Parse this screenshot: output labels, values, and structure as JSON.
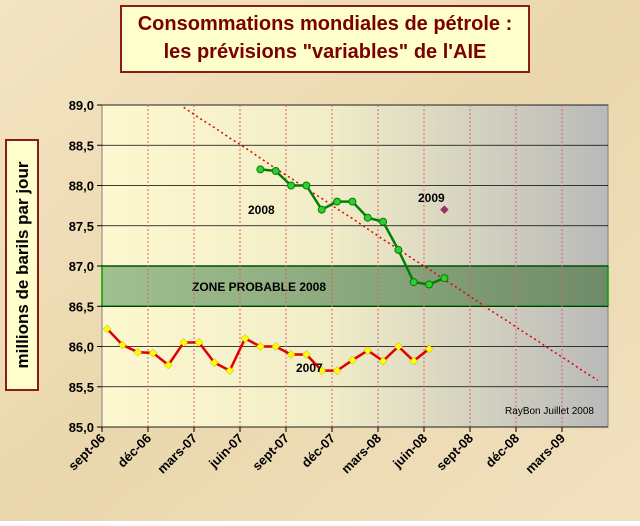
{
  "chart_data": {
    "type": "line",
    "title": [
      "Consommations mondiales de pétrole :",
      "les prévisions \"variables\" de l'AIE"
    ],
    "y_label": "millions de barils par jour",
    "annotation": "RayBon Juillet 2008",
    "categories": [
      "sept-06",
      null,
      null,
      "déc-06",
      null,
      null,
      "mars-07",
      null,
      null,
      "juin-07",
      null,
      null,
      "sept-07",
      null,
      null,
      "déc-07",
      null,
      null,
      "mars-08",
      null,
      null,
      "juin-08",
      null,
      null,
      "sept-08",
      null,
      null,
      "déc-08",
      null,
      null,
      "mars-09",
      null,
      null,
      null
    ],
    "series": [
      {
        "name": "2008",
        "color": "#008000",
        "marker": "circle",
        "marker_color": "#33cc33",
        "values": [
          null,
          null,
          null,
          null,
          null,
          null,
          null,
          null,
          null,
          null,
          88.2,
          88.18,
          88.0,
          88.0,
          87.7,
          87.8,
          87.8,
          87.6,
          87.55,
          87.2,
          86.8,
          86.77,
          86.85,
          null,
          null,
          null,
          null,
          null,
          null,
          null,
          null,
          null,
          null,
          null
        ]
      },
      {
        "name": "2007",
        "color": "#e00000",
        "marker": "diamond",
        "marker_color": "#ffff00",
        "values": [
          86.22,
          86.02,
          85.93,
          85.92,
          85.77,
          86.05,
          86.05,
          85.8,
          85.7,
          86.1,
          86.0,
          86.0,
          85.9,
          85.9,
          85.7,
          85.7,
          85.83,
          85.95,
          85.82,
          86.0,
          85.82,
          85.97,
          null,
          null,
          null,
          null,
          null,
          null,
          null,
          null,
          null,
          null,
          null,
          null
        ]
      },
      {
        "name": "2009",
        "color": "#993366",
        "marker": "diamond",
        "marker_color": "#993366",
        "values": [
          null,
          null,
          null,
          null,
          null,
          null,
          null,
          null,
          null,
          null,
          null,
          null,
          null,
          null,
          null,
          null,
          null,
          null,
          null,
          null,
          null,
          null,
          87.7,
          null,
          null,
          null,
          null,
          null,
          null,
          null,
          null,
          null,
          null,
          null
        ]
      }
    ],
    "trend": {
      "color": "#e00000",
      "values": [
        null,
        null,
        null,
        null,
        null,
        88.97,
        88.84,
        88.72,
        88.59,
        88.47,
        88.34,
        88.21,
        88.09,
        87.96,
        87.84,
        87.71,
        87.59,
        87.46,
        87.33,
        87.21,
        87.08,
        86.96,
        86.83,
        86.71,
        86.58,
        86.45,
        86.33,
        86.2,
        86.08,
        85.95,
        85.83,
        85.7,
        85.58,
        null
      ]
    },
    "zone": {
      "label": "ZONE PROBABLE 2008",
      "from": 86.5,
      "to": 87.0,
      "color": "#2e8b2e"
    },
    "ylim": [
      85.0,
      89.0
    ],
    "yticks": [
      {
        "value": 85.0,
        "label": "85,0"
      },
      {
        "value": 85.5,
        "label": "85,5"
      },
      {
        "value": 86.0,
        "label": "86,0"
      },
      {
        "value": 86.5,
        "label": "86,5"
      },
      {
        "value": 87.0,
        "label": "87,0"
      },
      {
        "value": 87.5,
        "label": "87,5"
      },
      {
        "value": 88.0,
        "label": "88,0"
      },
      {
        "value": 88.5,
        "label": "88,5"
      },
      {
        "value": 89.0,
        "label": "89,0"
      }
    ],
    "grid": true
  }
}
